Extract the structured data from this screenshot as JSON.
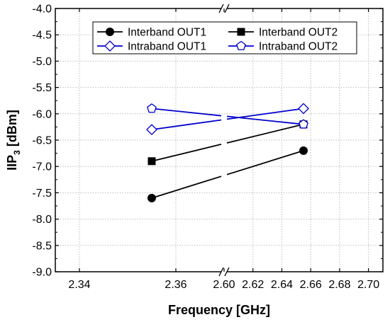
{
  "chart_data": {
    "type": "line",
    "title": "",
    "xlabel": "Frequency [GHz]",
    "ylabel": "IIP",
    "ylabel_subscript": "3",
    "ylabel_unit": " [dBm]",
    "ylim": [
      -9.0,
      -4.0
    ],
    "y_ticks": [
      "-4.0",
      "-4.5",
      "-5.0",
      "-5.5",
      "-6.0",
      "-6.5",
      "-7.0",
      "-7.5",
      "-8.0",
      "-8.5",
      "-9.0"
    ],
    "x_axis_break": true,
    "x_segments": [
      {
        "range": [
          2.335,
          2.37
        ],
        "ticks": [
          "2.34",
          "2.36"
        ]
      },
      {
        "range": [
          2.6,
          2.71
        ],
        "ticks": [
          "2.60",
          "2.62",
          "2.64",
          "2.66",
          "2.68",
          "2.70"
        ]
      }
    ],
    "grid": true,
    "legend_position": "top",
    "series": [
      {
        "name": "Interband OUT1",
        "marker": "circle-filled",
        "color": "#000000",
        "x": [
          2.355,
          2.655
        ],
        "y": [
          -7.6,
          -6.7
        ]
      },
      {
        "name": "Interband OUT2",
        "marker": "square-filled",
        "color": "#000000",
        "x": [
          2.355,
          2.655
        ],
        "y": [
          -6.9,
          -6.2
        ]
      },
      {
        "name": "Intraband OUT1",
        "marker": "diamond-open",
        "color": "#0000cc",
        "x": [
          2.355,
          2.655
        ],
        "y": [
          -6.3,
          -5.9
        ]
      },
      {
        "name": "Intraband OUT2",
        "marker": "pentagon-open",
        "color": "#0000cc",
        "x": [
          2.355,
          2.655
        ],
        "y": [
          -5.9,
          -6.2
        ]
      }
    ]
  }
}
